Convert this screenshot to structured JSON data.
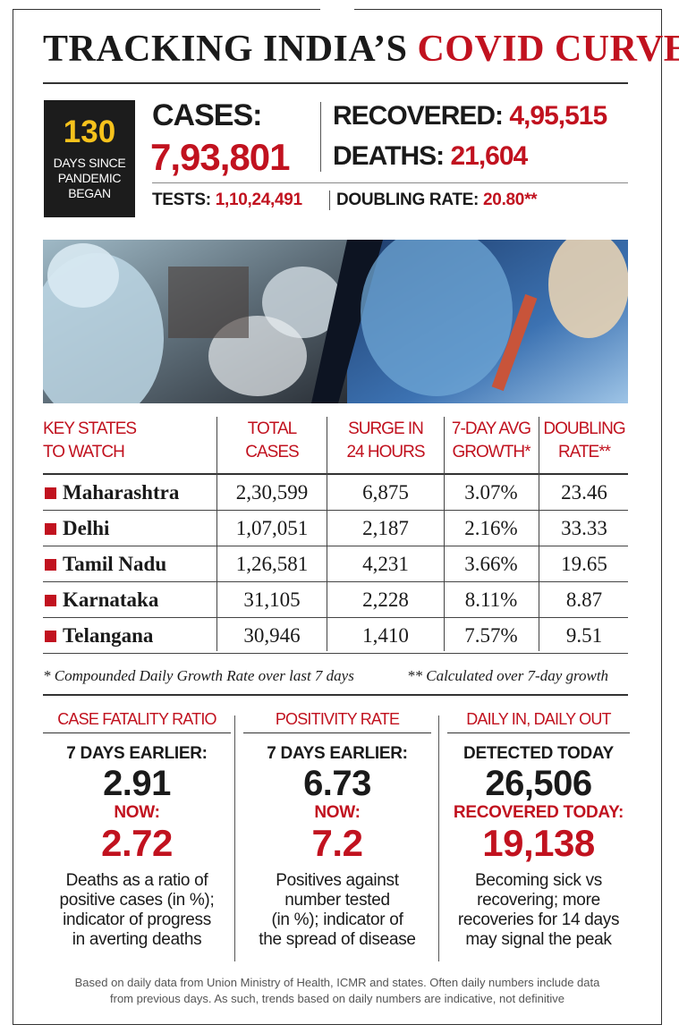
{
  "title": {
    "part_a": "TRACKING INDIA’S",
    "part_b": "COVID CURVE"
  },
  "days": {
    "number": "130",
    "text": [
      "DAYS SINCE",
      "PANDEMIC",
      "BEGAN"
    ]
  },
  "cases": {
    "label": "CASES:",
    "value": "7,93,801"
  },
  "recovered": {
    "label": "RECOVERED:",
    "value": "4,95,515"
  },
  "deaths": {
    "label": "DEATHS:",
    "value": "21,604"
  },
  "tests": {
    "label": "TESTS:",
    "value": "1,10,24,491"
  },
  "doubling_rate": {
    "label": "DOUBLING RATE:",
    "value": "20.80**"
  },
  "table": {
    "headers": [
      [
        "KEY STATES",
        "TO WATCH"
      ],
      [
        "TOTAL",
        "CASES"
      ],
      [
        "SURGE IN",
        "24 HOURS"
      ],
      [
        "7-DAY AVG",
        "GROWTH*"
      ],
      [
        "DOUBLING",
        "RATE**"
      ]
    ],
    "rows": [
      {
        "state": "Maharashtra",
        "total": "2,30,599",
        "surge": "6,875",
        "growth": "3.07%",
        "doubling": "23.46"
      },
      {
        "state": "Delhi",
        "total": "1,07,051",
        "surge": "2,187",
        "growth": "2.16%",
        "doubling": "33.33"
      },
      {
        "state": "Tamil Nadu",
        "total": "1,26,581",
        "surge": "4,231",
        "growth": "3.66%",
        "doubling": "19.65"
      },
      {
        "state": "Karnataka",
        "total": "31,105",
        "surge": "2,228",
        "growth": "8.11%",
        "doubling": "8.87"
      },
      {
        "state": "Telangana",
        "total": "30,946",
        "surge": "1,410",
        "growth": "7.57%",
        "doubling": "9.51"
      }
    ],
    "footnote_left": "* Compounded Daily Growth Rate over last 7 days",
    "footnote_right": "** Calculated over 7-day growth"
  },
  "panels": [
    {
      "title": "CASE FATALITY RATIO",
      "label1": "7 DAYS EARLIER:",
      "value1": "2.91",
      "label2": "NOW:",
      "value2": "2.72",
      "desc": [
        "Deaths as a ratio of",
        "positive cases (in %);",
        "indicator of progress",
        "in averting deaths"
      ]
    },
    {
      "title": "POSITIVITY RATE",
      "label1": "7 DAYS EARLIER:",
      "value1": "6.73",
      "label2": "NOW:",
      "value2": "7.2",
      "desc": [
        "Positives against",
        "number tested",
        "(in %); indicator of",
        "the spread of disease"
      ]
    },
    {
      "title": "DAILY IN, DAILY OUT",
      "label1": "DETECTED TODAY",
      "value1": "26,506",
      "label2": "RECOVERED TODAY:",
      "value2": "19,138",
      "desc": [
        "Becoming sick vs",
        "recovering; more",
        "recoveries for 14 days",
        "may signal the peak"
      ]
    }
  ],
  "source": [
    "Based on daily data from Union Ministry of Health, ICMR and states. Often daily numbers include data",
    "from previous days. As such, trends based on daily numbers are indicative, not definitive"
  ],
  "colors": {
    "accent": "#c1121f",
    "days_number": "#f6c21c",
    "box": "#1c1c1c"
  }
}
